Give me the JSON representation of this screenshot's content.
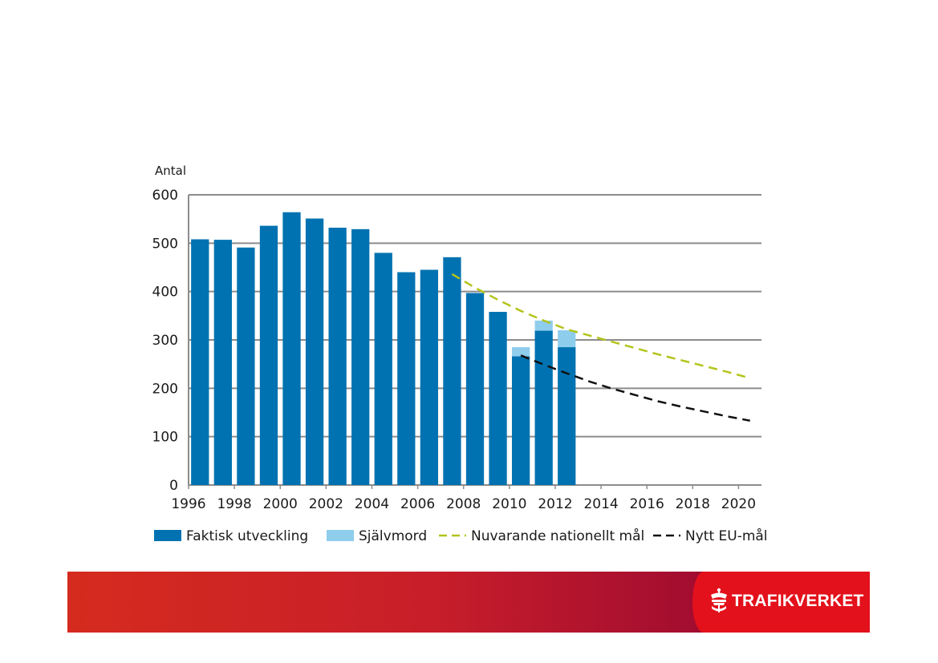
{
  "chart_data": {
    "type": "bar",
    "ylabel": "Antal",
    "ylim": [
      0,
      600
    ],
    "yticks": [
      "0",
      "100",
      "200",
      "300",
      "400",
      "500",
      "600"
    ],
    "xticks": [
      "1996",
      "1998",
      "2000",
      "2002",
      "2004",
      "2006",
      "2008",
      "2010",
      "2012",
      "2014",
      "2016",
      "2018",
      "2020"
    ],
    "categories": [
      "1996",
      "1997",
      "1998",
      "1999",
      "2000",
      "2001",
      "2002",
      "2003",
      "2004",
      "2005",
      "2006",
      "2007",
      "2008",
      "2009",
      "2010",
      "2011",
      "2012"
    ],
    "series": [
      {
        "name": "Faktisk utveckling",
        "color": "#0072b1",
        "values": [
          508,
          507,
          491,
          536,
          564,
          551,
          532,
          529,
          480,
          440,
          445,
          471,
          397,
          358,
          266,
          319,
          285
        ]
      },
      {
        "name": "Självmord",
        "color": "#8fcdec",
        "values": [
          null,
          null,
          null,
          null,
          null,
          null,
          null,
          null,
          null,
          null,
          null,
          null,
          null,
          null,
          19,
          21,
          35
        ]
      }
    ],
    "lines": [
      {
        "name": "Nuvarande nationellt mål",
        "color": "#b3c41a",
        "style": "dashed",
        "x": [
          2007,
          2008,
          2009,
          2010,
          2011,
          2012,
          2013,
          2014,
          2015,
          2016,
          2017,
          2018,
          2019,
          2020
        ],
        "y": [
          436,
          408,
          383,
          360,
          340,
          322,
          309,
          296,
          283,
          270,
          258,
          246,
          234,
          221
        ]
      },
      {
        "name": "Nytt EU-mål",
        "color": "#111111",
        "style": "dashed",
        "x": [
          2010,
          2011,
          2012,
          2013,
          2014,
          2015,
          2016,
          2017,
          2018,
          2019,
          2020
        ],
        "y": [
          268,
          249,
          231,
          214,
          199,
          186,
          173,
          162,
          152,
          142,
          133
        ]
      }
    ]
  },
  "legend": {
    "faktisk": "Faktisk utveckling",
    "sjalvmord": "Självmord",
    "nationellt": "Nuvarande nationellt mål",
    "eu": "Nytt EU-mål"
  },
  "footer": {
    "logo_text": "TRAFIKVERKET",
    "logo_icon": "crown-icon",
    "band_colors": [
      "#d52b1e",
      "#9b0a2e",
      "#e3111b"
    ]
  }
}
